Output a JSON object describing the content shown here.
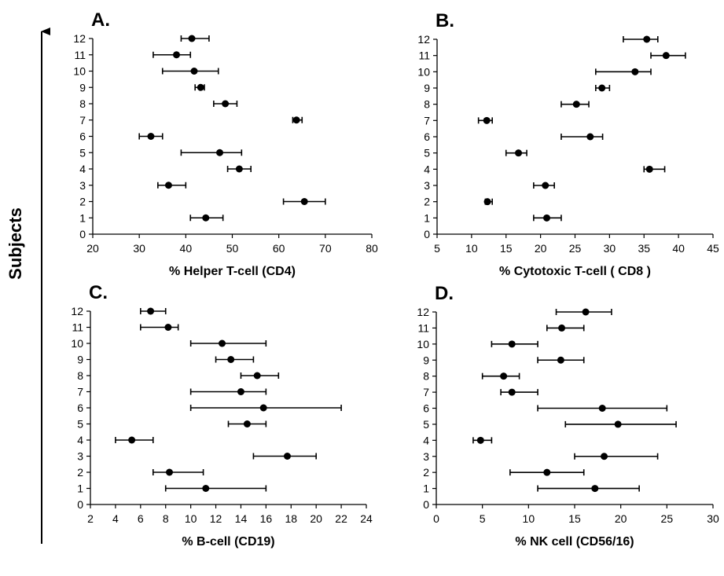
{
  "figure": {
    "side_label": "Subjects"
  },
  "chart_data": [
    {
      "type": "scatter",
      "panel": "A.",
      "xlabel": "% Helper T-cell (CD4)",
      "xlim": [
        20,
        80
      ],
      "xticks": [
        20,
        30,
        40,
        50,
        60,
        70,
        80
      ],
      "ylim": [
        0,
        12
      ],
      "yticks": [
        0,
        1,
        2,
        3,
        4,
        5,
        6,
        7,
        8,
        9,
        10,
        11,
        12
      ],
      "error_bars": "horizontal",
      "points": [
        {
          "y": 1,
          "x": 44.3,
          "lo": 41,
          "hi": 48
        },
        {
          "y": 2,
          "x": 65.5,
          "lo": 61,
          "hi": 70
        },
        {
          "y": 3,
          "x": 36.3,
          "lo": 34,
          "hi": 40
        },
        {
          "y": 4,
          "x": 51.5,
          "lo": 49,
          "hi": 54
        },
        {
          "y": 5,
          "x": 47.3,
          "lo": 39,
          "hi": 52
        },
        {
          "y": 6,
          "x": 32.5,
          "lo": 30,
          "hi": 35
        },
        {
          "y": 7,
          "x": 63.8,
          "lo": 63,
          "hi": 65
        },
        {
          "y": 8,
          "x": 48.5,
          "lo": 46,
          "hi": 51
        },
        {
          "y": 9,
          "x": 43.2,
          "lo": 42,
          "hi": 44
        },
        {
          "y": 10,
          "x": 41.8,
          "lo": 35,
          "hi": 47
        },
        {
          "y": 11,
          "x": 38,
          "lo": 33,
          "hi": 41
        },
        {
          "y": 12,
          "x": 41.3,
          "lo": 39,
          "hi": 45
        }
      ]
    },
    {
      "type": "scatter",
      "panel": "B.",
      "xlabel": "% Cytotoxic T-cell ( CD8 )",
      "xlim": [
        5,
        45
      ],
      "xticks": [
        5,
        10,
        15,
        20,
        25,
        30,
        35,
        40,
        45
      ],
      "ylim": [
        0,
        12
      ],
      "yticks": [
        0,
        1,
        2,
        3,
        4,
        5,
        6,
        7,
        8,
        9,
        10,
        11,
        12
      ],
      "error_bars": "horizontal",
      "points": [
        {
          "y": 1,
          "x": 20.9,
          "lo": 19,
          "hi": 23
        },
        {
          "y": 2,
          "x": 12.3,
          "lo": 12,
          "hi": 13
        },
        {
          "y": 3,
          "x": 20.7,
          "lo": 19,
          "hi": 22
        },
        {
          "y": 4,
          "x": 35.8,
          "lo": 35,
          "hi": 38
        },
        {
          "y": 5,
          "x": 16.8,
          "lo": 15,
          "hi": 18
        },
        {
          "y": 6,
          "x": 27.2,
          "lo": 23,
          "hi": 29
        },
        {
          "y": 7,
          "x": 12.2,
          "lo": 11,
          "hi": 13
        },
        {
          "y": 8,
          "x": 25.2,
          "lo": 23,
          "hi": 27
        },
        {
          "y": 9,
          "x": 28.9,
          "lo": 28,
          "hi": 30
        },
        {
          "y": 10,
          "x": 33.7,
          "lo": 28,
          "hi": 36
        },
        {
          "y": 11,
          "x": 38.2,
          "lo": 36,
          "hi": 41
        },
        {
          "y": 12,
          "x": 35.4,
          "lo": 32,
          "hi": 37
        }
      ]
    },
    {
      "type": "scatter",
      "panel": "C.",
      "xlabel": "% B-cell (CD19)",
      "xlim": [
        2,
        24
      ],
      "xticks": [
        2,
        4,
        6,
        8,
        10,
        12,
        14,
        16,
        18,
        20,
        22,
        24
      ],
      "ylim": [
        0,
        12
      ],
      "yticks": [
        0,
        1,
        2,
        3,
        4,
        5,
        6,
        7,
        8,
        9,
        10,
        11,
        12
      ],
      "error_bars": "horizontal",
      "points": [
        {
          "y": 1,
          "x": 11.2,
          "lo": 8,
          "hi": 16
        },
        {
          "y": 2,
          "x": 8.3,
          "lo": 7,
          "hi": 11
        },
        {
          "y": 3,
          "x": 17.7,
          "lo": 15,
          "hi": 20
        },
        {
          "y": 4,
          "x": 5.3,
          "lo": 4,
          "hi": 7
        },
        {
          "y": 5,
          "x": 14.5,
          "lo": 13,
          "hi": 16
        },
        {
          "y": 6,
          "x": 15.8,
          "lo": 10,
          "hi": 22
        },
        {
          "y": 7,
          "x": 14.0,
          "lo": 10,
          "hi": 16
        },
        {
          "y": 8,
          "x": 15.3,
          "lo": 14,
          "hi": 17
        },
        {
          "y": 9,
          "x": 13.2,
          "lo": 12,
          "hi": 15
        },
        {
          "y": 10,
          "x": 12.5,
          "lo": 10,
          "hi": 16
        },
        {
          "y": 11,
          "x": 8.2,
          "lo": 6,
          "hi": 9
        },
        {
          "y": 12,
          "x": 6.8,
          "lo": 6,
          "hi": 8
        }
      ]
    },
    {
      "type": "scatter",
      "panel": "D.",
      "xlabel": "% NK cell (CD56/16)",
      "xlim": [
        0,
        30
      ],
      "xticks": [
        0,
        5,
        10,
        15,
        20,
        25,
        30
      ],
      "ylim": [
        0,
        12
      ],
      "yticks": [
        0,
        1,
        2,
        3,
        4,
        5,
        6,
        7,
        8,
        9,
        10,
        11,
        12
      ],
      "error_bars": "horizontal",
      "points": [
        {
          "y": 1,
          "x": 17.2,
          "lo": 11,
          "hi": 22
        },
        {
          "y": 2,
          "x": 12.0,
          "lo": 8,
          "hi": 16
        },
        {
          "y": 3,
          "x": 18.2,
          "lo": 15,
          "hi": 24
        },
        {
          "y": 4,
          "x": 4.8,
          "lo": 4,
          "hi": 6
        },
        {
          "y": 5,
          "x": 19.7,
          "lo": 14,
          "hi": 26
        },
        {
          "y": 6,
          "x": 18.0,
          "lo": 11,
          "hi": 25
        },
        {
          "y": 7,
          "x": 8.2,
          "lo": 7,
          "hi": 11
        },
        {
          "y": 8,
          "x": 7.3,
          "lo": 5,
          "hi": 9
        },
        {
          "y": 9,
          "x": 13.5,
          "lo": 11,
          "hi": 16
        },
        {
          "y": 10,
          "x": 8.2,
          "lo": 6,
          "hi": 11
        },
        {
          "y": 11,
          "x": 13.6,
          "lo": 12,
          "hi": 16
        },
        {
          "y": 12,
          "x": 16.2,
          "lo": 13,
          "hi": 19
        }
      ]
    }
  ]
}
